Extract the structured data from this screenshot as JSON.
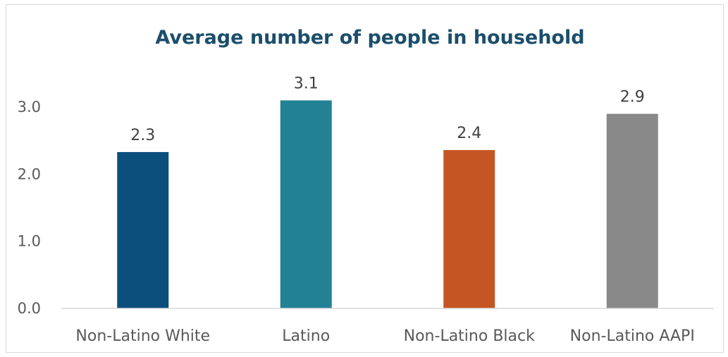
{
  "chart_data": {
    "type": "bar",
    "title": "Average number of people in household",
    "xlabel": "",
    "ylabel": "",
    "categories": [
      "Non-Latino White",
      "Latino",
      "Non-Latino Black",
      "Non-Latino AAPI"
    ],
    "values": [
      2.33,
      3.1,
      2.36,
      2.9
    ],
    "data_labels": [
      "2.3",
      "3.1",
      "2.4",
      "2.9"
    ],
    "colors": [
      "#0b4f7c",
      "#238196",
      "#c55623",
      "#898989"
    ],
    "ylim": [
      0,
      3
    ],
    "yticks": [
      0,
      1,
      2,
      3
    ],
    "ytick_labels": [
      "0.0",
      "1.0",
      "2.0",
      "3.0"
    ],
    "grid": false,
    "legend": "none"
  }
}
